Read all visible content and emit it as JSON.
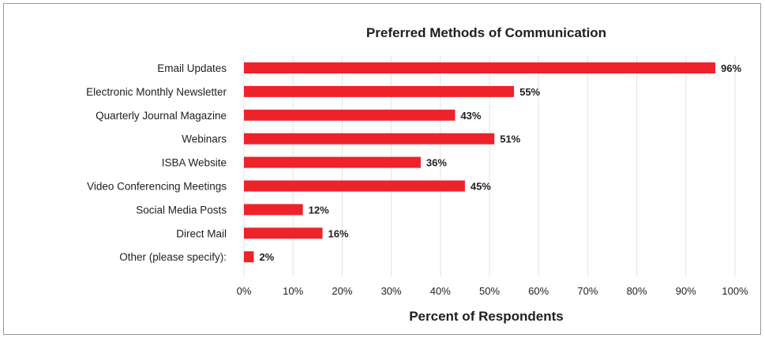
{
  "chart_data": {
    "type": "bar",
    "orientation": "horizontal",
    "title": "Preferred Methods of Communication",
    "xlabel": "Percent of Respondents",
    "ylabel": "",
    "categories": [
      "Email Updates",
      "Electronic Monthly Newsletter",
      "Quarterly Journal Magazine",
      "Webinars",
      "ISBA Website",
      "Video Conferencing Meetings",
      "Social Media Posts",
      "Direct Mail",
      "Other (please specify):"
    ],
    "values": [
      96,
      55,
      43,
      51,
      36,
      45,
      12,
      16,
      2
    ],
    "data_labels": [
      "96%",
      "55%",
      "43%",
      "51%",
      "36%",
      "45%",
      "12%",
      "16%",
      "2%"
    ],
    "xlim": [
      0,
      100
    ],
    "xticks": [
      0,
      10,
      20,
      30,
      40,
      50,
      60,
      70,
      80,
      90,
      100
    ],
    "xtick_labels": [
      "0%",
      "10%",
      "20%",
      "30%",
      "40%",
      "50%",
      "60%",
      "70%",
      "80%",
      "90%",
      "100%"
    ],
    "grid": "vertical",
    "bar_color": "#ee2229"
  }
}
